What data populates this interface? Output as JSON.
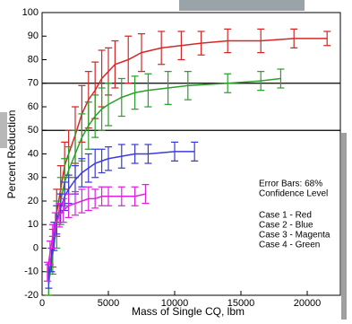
{
  "chart_data": {
    "type": "errorbar-line",
    "x_label": "Mass of Single CQ, lbm",
    "y_label": "Percent Reduction",
    "xlim": [
      0,
      22500
    ],
    "xticks": [
      0,
      5000,
      10000,
      15000,
      20000
    ],
    "ylim": [
      -20,
      100
    ],
    "yticks": [
      -20,
      -10,
      0,
      10,
      20,
      30,
      40,
      50,
      60,
      70,
      80,
      90,
      100
    ],
    "reference_lines": [
      70,
      50
    ],
    "annotations": [
      "Error Bars: 68%",
      "Confidence Level",
      "Case 1 - Red",
      "Case 2 - Blue",
      "Case 3 - Magenta",
      "Case 4 - Green"
    ],
    "series": [
      {
        "color": "#d62728",
        "x": [
          500,
          800,
          1100,
          1400,
          1700,
          2000,
          2500,
          3000,
          3500,
          4000,
          4500,
          5000,
          5500,
          6500,
          7500,
          9000,
          10500,
          12000,
          14000,
          16500,
          19000,
          21500
        ],
        "values": [
          -15,
          0,
          15,
          25,
          35,
          40,
          48,
          57,
          63,
          67,
          72,
          75,
          78,
          80,
          83,
          85,
          86,
          87,
          88,
          88,
          89,
          89
        ],
        "errors": [
          5,
          8,
          10,
          10,
          10,
          10,
          12,
          12,
          12,
          12,
          12,
          10,
          10,
          10,
          8,
          7,
          6,
          5,
          5,
          5,
          4,
          3
        ]
      },
      {
        "color": "#2ca02c",
        "x": [
          500,
          800,
          1100,
          1400,
          1700,
          2000,
          2500,
          3000,
          3500,
          4000,
          4500,
          5000,
          6000,
          7000,
          8000,
          9500,
          11000,
          14000,
          16500,
          18000
        ],
        "values": [
          -15,
          -3,
          10,
          20,
          28,
          33,
          40,
          47,
          52,
          56,
          59,
          61,
          64,
          66,
          67,
          68,
          69,
          70,
          71,
          72
        ],
        "errors": [
          5,
          8,
          10,
          10,
          10,
          10,
          10,
          10,
          10,
          9,
          9,
          9,
          8,
          7,
          7,
          7,
          6,
          4,
          4,
          4
        ]
      },
      {
        "color": "#3b3bdc",
        "x": [
          500,
          700,
          900,
          1100,
          1400,
          1700,
          2000,
          2500,
          3000,
          3500,
          4000,
          4500,
          5000,
          6000,
          7000,
          8000,
          10000,
          11500
        ],
        "values": [
          -12,
          -5,
          5,
          12,
          17,
          22,
          25,
          29,
          32,
          34,
          36,
          37,
          38,
          39,
          40,
          40,
          41,
          41
        ],
        "errors": [
          5,
          5,
          6,
          6,
          6,
          6,
          6,
          6,
          6,
          6,
          6,
          5,
          5,
          5,
          4,
          4,
          4,
          4
        ]
      },
      {
        "color": "#e020e0",
        "x": [
          400,
          600,
          800,
          1000,
          1300,
          1600,
          2000,
          2500,
          3000,
          3500,
          4000,
          4500,
          5000,
          6000,
          7000,
          7800
        ],
        "values": [
          -10,
          -2,
          5,
          10,
          14,
          16,
          18,
          19,
          20,
          21,
          21,
          22,
          22,
          22,
          22,
          23
        ],
        "errors": [
          4,
          5,
          5,
          5,
          5,
          5,
          5,
          5,
          5,
          5,
          4,
          4,
          4,
          4,
          4,
          4
        ]
      }
    ]
  }
}
